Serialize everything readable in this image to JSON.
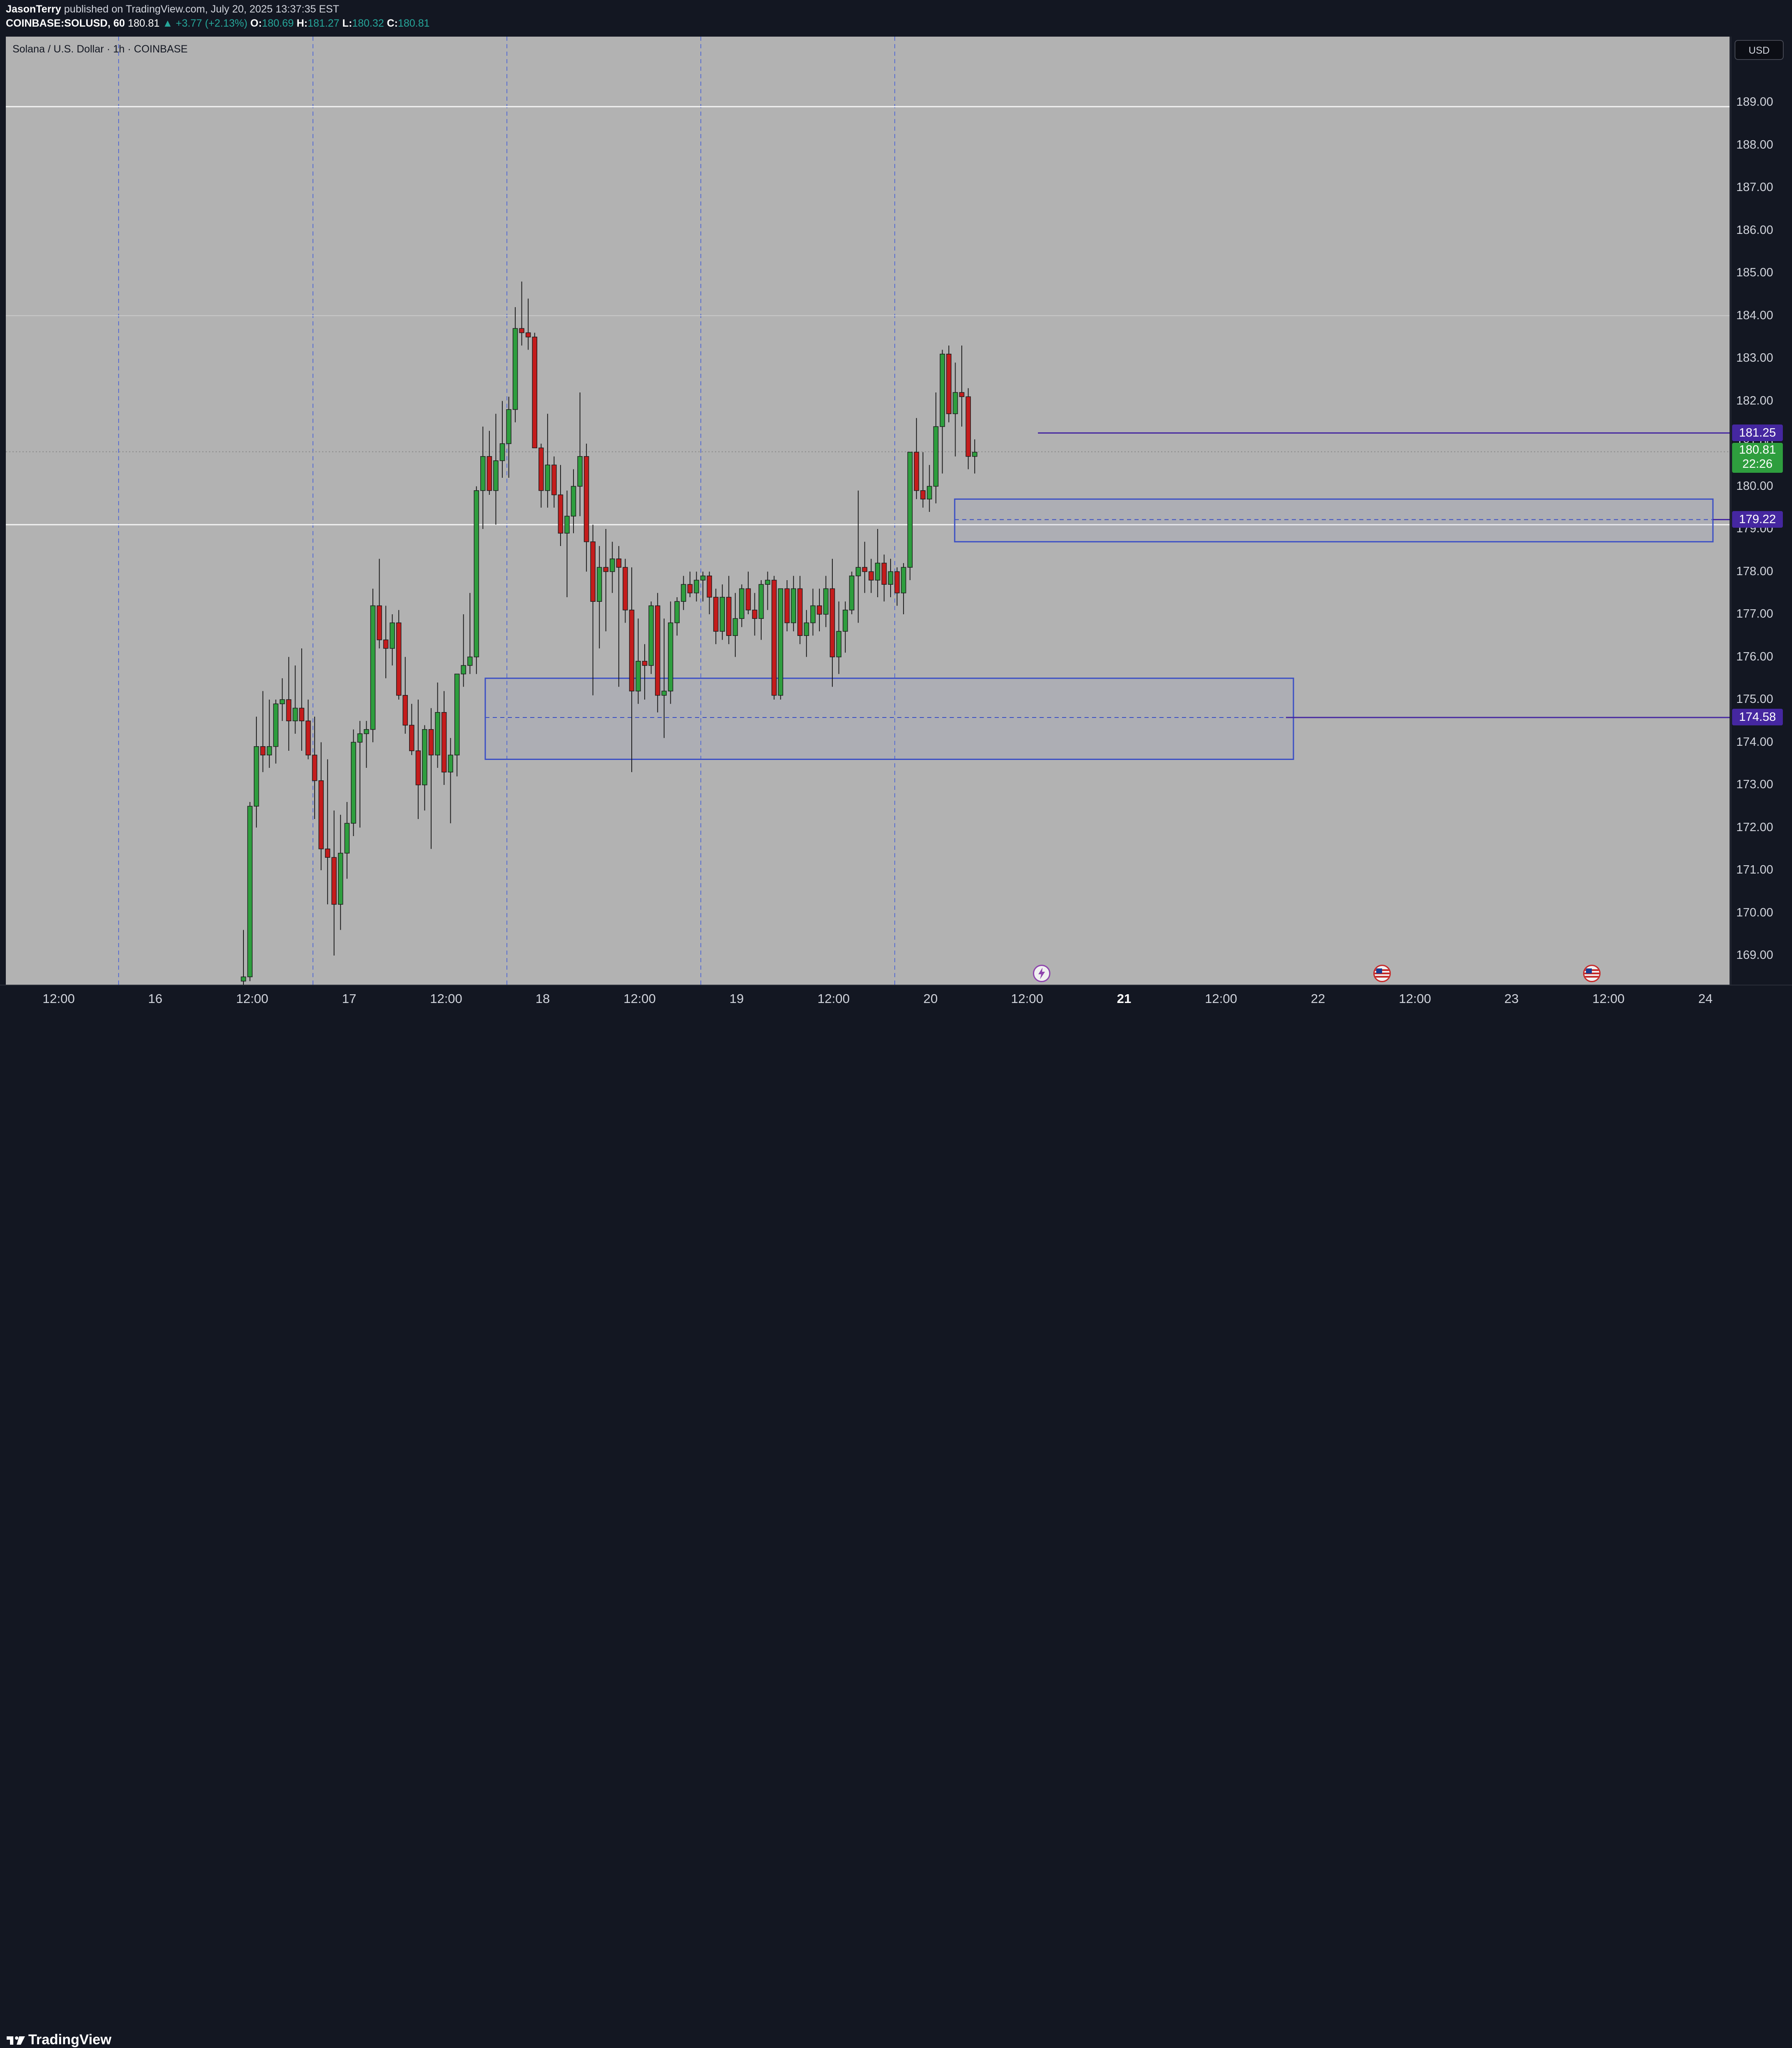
{
  "header": {
    "author": "JasonTerry",
    "published_text": "published on TradingView.com, July 20, 2025 13:37:35 EST",
    "symbol_line": "COINBASE:SOLUSD, 60",
    "last_price": "180.81",
    "change": "▲ +3.77 (+2.13%)",
    "o_label": "O:",
    "o_value": "180.69",
    "h_label": "H:",
    "h_value": "181.27",
    "l_label": "L:",
    "l_value": "180.32",
    "c_label": "C:",
    "c_value": "180.81"
  },
  "legend": {
    "title": "Solana / U.S. Dollar · 1h · COINBASE"
  },
  "price_axis": {
    "currency": "USD",
    "ticks": [
      "189.00",
      "188.00",
      "187.00",
      "186.00",
      "185.00",
      "184.00",
      "183.00",
      "182.00",
      "181.00",
      "180.00",
      "179.00",
      "178.00",
      "177.00",
      "176.00",
      "175.00",
      "174.00",
      "173.00",
      "172.00",
      "171.00",
      "170.00",
      "169.00"
    ],
    "tick_values": [
      189,
      188,
      187,
      186,
      185,
      184,
      183,
      182,
      181,
      180,
      179,
      178,
      177,
      176,
      175,
      174,
      173,
      172,
      171,
      170,
      169
    ]
  },
  "price_labels": {
    "level_1": "181.25",
    "current": "180.81",
    "countdown": "22:26",
    "level_2": "179.22",
    "level_3": "174.58"
  },
  "time_axis": {
    "labels": [
      {
        "text": "12:00",
        "x": 141,
        "bold": false
      },
      {
        "text": "16",
        "x": 373,
        "bold": false
      },
      {
        "text": "12:00",
        "x": 606,
        "bold": false
      },
      {
        "text": "17",
        "x": 839,
        "bold": false
      },
      {
        "text": "12:00",
        "x": 1072,
        "bold": false
      },
      {
        "text": "18",
        "x": 1304,
        "bold": false
      },
      {
        "text": "12:00",
        "x": 1537,
        "bold": false
      },
      {
        "text": "19",
        "x": 1770,
        "bold": false
      },
      {
        "text": "12:00",
        "x": 2003,
        "bold": false
      },
      {
        "text": "20",
        "x": 2236,
        "bold": false
      },
      {
        "text": "12:00",
        "x": 2468,
        "bold": false
      },
      {
        "text": "21",
        "x": 2701,
        "bold": true
      },
      {
        "text": "12:00",
        "x": 2934,
        "bold": false
      },
      {
        "text": "22",
        "x": 3167,
        "bold": false
      },
      {
        "text": "12:00",
        "x": 3400,
        "bold": false
      },
      {
        "text": "23",
        "x": 3632,
        "bold": false
      },
      {
        "text": "12:00",
        "x": 3865,
        "bold": false
      },
      {
        "text": "24",
        "x": 4098,
        "bold": false
      }
    ]
  },
  "footer": {
    "brand": "TradingView"
  },
  "colors": {
    "up": "#26a69a",
    "candle_up": "#2e9e3e",
    "candle_down": "#c41c1c",
    "zone": "#3b4fc4",
    "level": "#4527a0"
  },
  "chart_data": {
    "type": "candlestick",
    "title": "Solana / U.S. Dollar · 1h · COINBASE",
    "ylim": [
      168.3,
      190.1
    ],
    "horizontal_lines": [
      188.9,
      184.0,
      179.1
    ],
    "levels": [
      181.25,
      179.22,
      174.58
    ],
    "zones": [
      {
        "low": 178.7,
        "high": 179.7,
        "mid": 179.22
      },
      {
        "low": 173.6,
        "high": 175.5,
        "mid": 174.58
      }
    ],
    "candles": [
      [
        168.4,
        169.6,
        168.3,
        168.5
      ],
      [
        168.5,
        172.6,
        168.4,
        172.5
      ],
      [
        172.5,
        174.6,
        172.0,
        173.9
      ],
      [
        173.9,
        175.2,
        173.3,
        173.7
      ],
      [
        173.7,
        175.0,
        173.4,
        173.9
      ],
      [
        173.9,
        175.0,
        173.5,
        174.9
      ],
      [
        174.9,
        175.5,
        174.5,
        175.0
      ],
      [
        175.0,
        176.0,
        173.8,
        174.5
      ],
      [
        174.5,
        175.8,
        174.2,
        174.8
      ],
      [
        174.8,
        176.2,
        173.8,
        174.5
      ],
      [
        174.5,
        175.0,
        173.6,
        173.7
      ],
      [
        173.7,
        174.6,
        172.2,
        173.1
      ],
      [
        173.1,
        174.0,
        171.0,
        171.5
      ],
      [
        171.5,
        173.6,
        170.2,
        171.3
      ],
      [
        171.3,
        172.4,
        169.0,
        170.2
      ],
      [
        170.2,
        172.3,
        169.6,
        171.4
      ],
      [
        171.4,
        172.6,
        170.8,
        172.1
      ],
      [
        172.1,
        174.3,
        171.8,
        174.0
      ],
      [
        174.0,
        174.5,
        172.0,
        174.2
      ],
      [
        174.2,
        174.5,
        173.4,
        174.3
      ],
      [
        174.3,
        177.6,
        174.0,
        177.2
      ],
      [
        177.2,
        178.3,
        176.2,
        176.4
      ],
      [
        176.4,
        177.2,
        175.5,
        176.2
      ],
      [
        176.2,
        177.0,
        175.8,
        176.8
      ],
      [
        176.8,
        177.1,
        175.0,
        175.1
      ],
      [
        175.1,
        176.0,
        174.2,
        174.4
      ],
      [
        174.4,
        174.9,
        173.7,
        173.8
      ],
      [
        173.8,
        175.0,
        172.2,
        173.0
      ],
      [
        173.0,
        174.4,
        172.4,
        174.3
      ],
      [
        174.3,
        174.8,
        171.5,
        173.7
      ],
      [
        173.7,
        175.4,
        173.4,
        174.7
      ],
      [
        174.7,
        175.2,
        173.0,
        173.3
      ],
      [
        173.3,
        174.1,
        172.1,
        173.7
      ],
      [
        173.7,
        175.6,
        173.2,
        175.6
      ],
      [
        175.6,
        177.0,
        175.3,
        175.8
      ],
      [
        175.8,
        177.5,
        175.6,
        176.0
      ],
      [
        176.0,
        180.0,
        175.6,
        179.9
      ],
      [
        179.9,
        181.4,
        179.0,
        180.7
      ],
      [
        180.7,
        181.3,
        179.8,
        179.9
      ],
      [
        179.9,
        181.7,
        179.1,
        180.6
      ],
      [
        180.6,
        182.0,
        180.2,
        181.0
      ],
      [
        181.0,
        182.1,
        180.2,
        181.8
      ],
      [
        181.8,
        184.2,
        181.5,
        183.7
      ],
      [
        183.7,
        184.8,
        183.3,
        183.6
      ],
      [
        183.6,
        184.4,
        183.2,
        183.5
      ],
      [
        183.5,
        183.6,
        180.9,
        180.9
      ],
      [
        180.9,
        181.0,
        179.5,
        179.9
      ],
      [
        179.9,
        181.7,
        179.5,
        180.5
      ],
      [
        180.5,
        180.7,
        179.5,
        179.8
      ],
      [
        179.8,
        180.5,
        178.6,
        178.9
      ],
      [
        178.9,
        179.9,
        177.4,
        179.3
      ],
      [
        179.3,
        180.4,
        178.9,
        180.0
      ],
      [
        180.0,
        182.2,
        179.3,
        180.7
      ],
      [
        180.7,
        181.0,
        178.0,
        178.7
      ],
      [
        178.7,
        179.1,
        175.1,
        177.3
      ],
      [
        177.3,
        178.6,
        176.2,
        178.1
      ],
      [
        178.1,
        179.0,
        176.6,
        178.0
      ],
      [
        178.0,
        178.7,
        177.5,
        178.3
      ],
      [
        178.3,
        178.6,
        175.3,
        178.1
      ],
      [
        178.1,
        178.3,
        176.8,
        177.1
      ],
      [
        177.1,
        178.1,
        173.3,
        175.2
      ],
      [
        175.2,
        176.9,
        174.9,
        175.9
      ],
      [
        175.9,
        176.3,
        175.0,
        175.8
      ],
      [
        175.8,
        177.3,
        175.6,
        177.2
      ],
      [
        177.2,
        177.5,
        174.7,
        175.1
      ],
      [
        175.1,
        176.9,
        174.1,
        175.2
      ],
      [
        175.2,
        177.3,
        174.9,
        176.8
      ],
      [
        176.8,
        177.4,
        176.5,
        177.3
      ],
      [
        177.3,
        177.9,
        177.1,
        177.7
      ],
      [
        177.7,
        178.0,
        177.4,
        177.5
      ],
      [
        177.5,
        178.0,
        177.3,
        177.8
      ],
      [
        177.8,
        178.0,
        177.3,
        177.9
      ],
      [
        177.9,
        178.0,
        177.0,
        177.4
      ],
      [
        177.4,
        177.6,
        176.3,
        176.6
      ],
      [
        176.6,
        177.7,
        176.4,
        177.4
      ],
      [
        177.4,
        177.9,
        176.3,
        176.5
      ],
      [
        176.5,
        177.5,
        176.0,
        176.9
      ],
      [
        176.9,
        177.7,
        176.7,
        177.6
      ],
      [
        177.6,
        178.0,
        177.0,
        177.1
      ],
      [
        177.1,
        177.5,
        176.5,
        176.9
      ],
      [
        176.9,
        177.8,
        176.4,
        177.7
      ],
      [
        177.7,
        178.0,
        177.1,
        177.8
      ],
      [
        177.8,
        177.9,
        175.0,
        175.1
      ],
      [
        175.1,
        177.6,
        175.0,
        177.6
      ],
      [
        177.6,
        177.8,
        176.6,
        176.8
      ],
      [
        176.8,
        177.9,
        176.6,
        177.6
      ],
      [
        177.6,
        177.9,
        176.3,
        176.5
      ],
      [
        176.5,
        177.1,
        176.0,
        176.8
      ],
      [
        176.8,
        177.6,
        176.5,
        177.2
      ],
      [
        177.2,
        177.6,
        176.6,
        177.0
      ],
      [
        177.0,
        177.9,
        176.7,
        177.6
      ],
      [
        177.6,
        178.3,
        175.3,
        176.0
      ],
      [
        176.0,
        177.3,
        175.6,
        176.6
      ],
      [
        176.6,
        177.3,
        176.1,
        177.1
      ],
      [
        177.1,
        178.0,
        177.0,
        177.9
      ],
      [
        177.9,
        179.9,
        176.8,
        178.1
      ],
      [
        178.1,
        178.7,
        177.5,
        178.0
      ],
      [
        178.0,
        178.3,
        177.5,
        177.8
      ],
      [
        177.8,
        179.0,
        177.4,
        178.2
      ],
      [
        178.2,
        178.4,
        177.3,
        177.7
      ],
      [
        177.7,
        178.3,
        177.4,
        178.0
      ],
      [
        178.0,
        178.1,
        177.2,
        177.5
      ],
      [
        177.5,
        178.2,
        177.0,
        178.1
      ],
      [
        178.1,
        180.8,
        177.8,
        180.8
      ],
      [
        180.8,
        181.6,
        179.7,
        179.9
      ],
      [
        179.9,
        180.8,
        179.5,
        179.7
      ],
      [
        179.7,
        180.5,
        179.4,
        180.0
      ],
      [
        180.0,
        182.2,
        179.6,
        181.4
      ],
      [
        181.4,
        183.2,
        180.3,
        183.1
      ],
      [
        183.1,
        183.3,
        181.5,
        181.7
      ],
      [
        181.7,
        182.9,
        180.7,
        182.2
      ],
      [
        182.2,
        183.3,
        181.4,
        182.1
      ],
      [
        182.1,
        182.3,
        180.4,
        180.7
      ],
      [
        180.7,
        181.1,
        180.3,
        180.8
      ]
    ]
  }
}
